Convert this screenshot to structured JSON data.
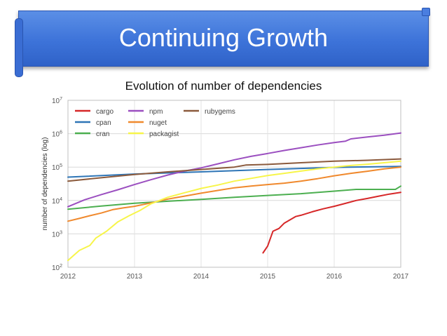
{
  "slide": {
    "title": "Continuing Growth"
  },
  "colors": {
    "banner": "#3d73d9",
    "cargo": "#d62728",
    "cpan": "#2e75b6",
    "cran": "#4caf50",
    "npm": "#9b4fc0",
    "nuget": "#f0892d",
    "packagist": "#f7f54a",
    "rubygems": "#8b5a3c"
  },
  "chart_data": {
    "type": "line",
    "title": "Evolution of number of dependencies",
    "xlabel": "",
    "ylabel": "number of dependencies (log)",
    "yscale": "log",
    "xlim": [
      2012,
      2017
    ],
    "ylim": [
      100,
      10000000
    ],
    "x_ticks": [
      "2012",
      "2013",
      "2014",
      "2015",
      "2016",
      "2017"
    ],
    "y_ticks": [
      {
        "base": "10",
        "exp": "2"
      },
      {
        "base": "10",
        "exp": "3"
      },
      {
        "base": "10",
        "exp": "4"
      },
      {
        "base": "10",
        "exp": "5"
      },
      {
        "base": "10",
        "exp": "6"
      },
      {
        "base": "10",
        "exp": "7"
      }
    ],
    "grid": true,
    "legend_position": "top-left",
    "series": [
      {
        "name": "cargo",
        "color": "#d62728",
        "points": [
          [
            2014.93,
            270
          ],
          [
            2015.0,
            430
          ],
          [
            2015.08,
            1200
          ],
          [
            2015.17,
            1450
          ],
          [
            2015.25,
            2100
          ],
          [
            2015.42,
            3300
          ],
          [
            2015.5,
            3600
          ],
          [
            2015.67,
            4600
          ],
          [
            2015.83,
            5600
          ],
          [
            2016.0,
            6700
          ],
          [
            2016.17,
            8200
          ],
          [
            2016.33,
            10000
          ],
          [
            2016.5,
            11500
          ],
          [
            2016.67,
            13500
          ],
          [
            2016.83,
            15500
          ],
          [
            2017.0,
            17500
          ]
        ]
      },
      {
        "name": "cpan",
        "color": "#2e75b6",
        "points": [
          [
            2012.0,
            50000
          ],
          [
            2013.0,
            62000
          ],
          [
            2014.0,
            72000
          ],
          [
            2015.0,
            85000
          ],
          [
            2016.0,
            98000
          ],
          [
            2017.0,
            105000
          ]
        ]
      },
      {
        "name": "cran",
        "color": "#4caf50",
        "points": [
          [
            2012.0,
            5500
          ],
          [
            2012.5,
            6800
          ],
          [
            2013.0,
            8300
          ],
          [
            2013.5,
            9500
          ],
          [
            2014.0,
            10800
          ],
          [
            2014.5,
            12500
          ],
          [
            2015.0,
            14200
          ],
          [
            2015.5,
            16000
          ],
          [
            2016.0,
            19000
          ],
          [
            2016.33,
            21500
          ],
          [
            2016.92,
            21500
          ],
          [
            2017.0,
            27000
          ]
        ]
      },
      {
        "name": "npm",
        "color": "#9b4fc0",
        "points": [
          [
            2012.0,
            6500
          ],
          [
            2012.25,
            10500
          ],
          [
            2012.5,
            15000
          ],
          [
            2012.75,
            21000
          ],
          [
            2013.0,
            30000
          ],
          [
            2013.25,
            42000
          ],
          [
            2013.5,
            58000
          ],
          [
            2013.75,
            76000
          ],
          [
            2014.0,
            95000
          ],
          [
            2014.25,
            125000
          ],
          [
            2014.5,
            165000
          ],
          [
            2014.75,
            210000
          ],
          [
            2015.0,
            255000
          ],
          [
            2015.25,
            315000
          ],
          [
            2015.5,
            380000
          ],
          [
            2015.75,
            460000
          ],
          [
            2016.0,
            540000
          ],
          [
            2016.17,
            600000
          ],
          [
            2016.25,
            700000
          ],
          [
            2016.5,
            800000
          ],
          [
            2016.75,
            900000
          ],
          [
            2017.0,
            1050000
          ]
        ]
      },
      {
        "name": "nuget",
        "color": "#f0892d",
        "points": [
          [
            2012.0,
            2400
          ],
          [
            2012.17,
            2900
          ],
          [
            2012.33,
            3500
          ],
          [
            2012.5,
            4200
          ],
          [
            2012.67,
            5300
          ],
          [
            2012.83,
            6000
          ],
          [
            2013.0,
            6700
          ],
          [
            2013.25,
            8500
          ],
          [
            2013.5,
            11000
          ],
          [
            2013.75,
            13500
          ],
          [
            2014.0,
            16500
          ],
          [
            2014.25,
            20000
          ],
          [
            2014.5,
            24000
          ],
          [
            2014.75,
            27000
          ],
          [
            2015.0,
            30000
          ],
          [
            2015.25,
            33000
          ],
          [
            2015.5,
            38000
          ],
          [
            2015.75,
            45000
          ],
          [
            2016.0,
            55000
          ],
          [
            2016.25,
            65000
          ],
          [
            2016.5,
            75000
          ],
          [
            2016.75,
            88000
          ],
          [
            2017.0,
            100000
          ]
        ]
      },
      {
        "name": "packagist",
        "color": "#f7f54a",
        "points": [
          [
            2012.0,
            160
          ],
          [
            2012.17,
            320
          ],
          [
            2012.33,
            450
          ],
          [
            2012.42,
            750
          ],
          [
            2012.58,
            1200
          ],
          [
            2012.75,
            2300
          ],
          [
            2012.92,
            3500
          ],
          [
            2013.08,
            5000
          ],
          [
            2013.25,
            8000
          ],
          [
            2013.5,
            12500
          ],
          [
            2013.75,
            17000
          ],
          [
            2014.0,
            23000
          ],
          [
            2014.25,
            29000
          ],
          [
            2014.5,
            38000
          ],
          [
            2014.75,
            46000
          ],
          [
            2015.0,
            56000
          ],
          [
            2015.25,
            65000
          ],
          [
            2015.5,
            76000
          ],
          [
            2015.75,
            88000
          ],
          [
            2016.0,
            100000
          ],
          [
            2016.25,
            112000
          ],
          [
            2016.5,
            122000
          ],
          [
            2016.75,
            135000
          ],
          [
            2017.0,
            150000
          ]
        ]
      },
      {
        "name": "rubygems",
        "color": "#8b5a3c",
        "points": [
          [
            2012.0,
            38000
          ],
          [
            2012.5,
            48000
          ],
          [
            2013.0,
            60000
          ],
          [
            2013.5,
            72000
          ],
          [
            2014.0,
            85000
          ],
          [
            2014.5,
            100000
          ],
          [
            2014.67,
            115000
          ],
          [
            2015.0,
            120000
          ],
          [
            2015.5,
            135000
          ],
          [
            2016.0,
            150000
          ],
          [
            2016.5,
            160000
          ],
          [
            2017.0,
            175000
          ]
        ]
      }
    ]
  }
}
